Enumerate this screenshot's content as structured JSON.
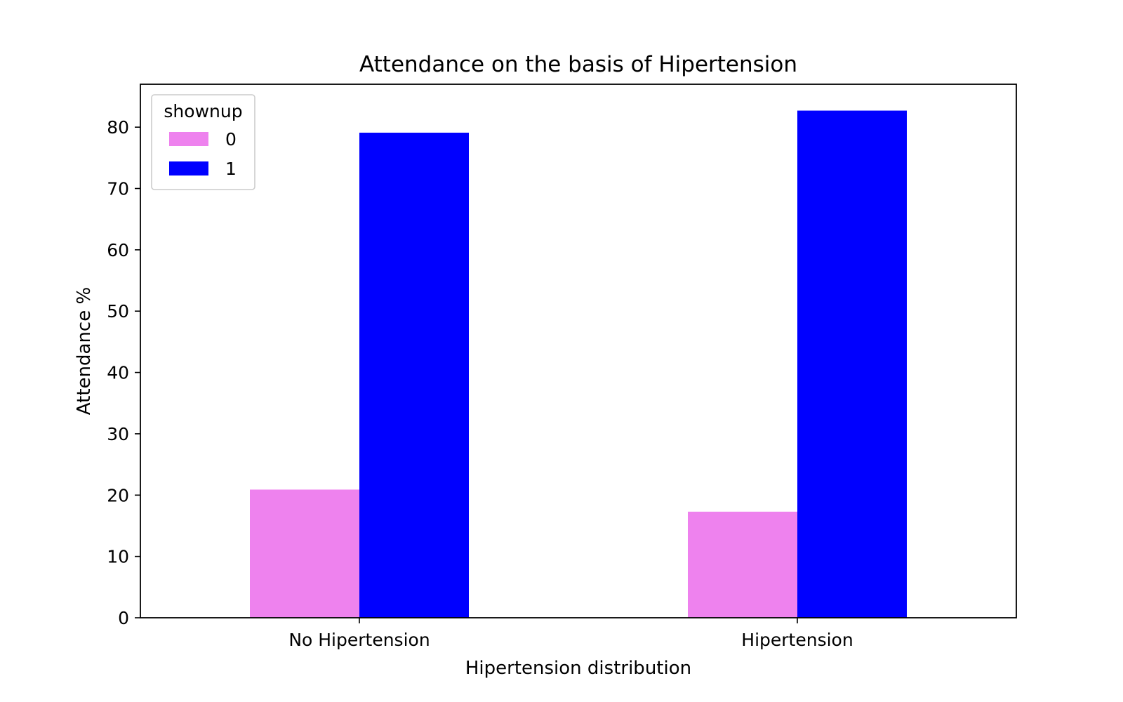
{
  "chart_data": {
    "type": "bar",
    "title": "Attendance on the basis of Hipertension",
    "xlabel": "Hipertension distribution",
    "ylabel": "Attendance %",
    "categories": [
      "No Hipertension",
      "Hipertension"
    ],
    "series": [
      {
        "name": "0",
        "color": "#ee82ee",
        "values": [
          20.9,
          17.3
        ]
      },
      {
        "name": "1",
        "color": "#0000ff",
        "values": [
          79.1,
          82.7
        ]
      }
    ],
    "ylim": [
      0,
      87
    ],
    "yticks": [
      0,
      10,
      20,
      30,
      40,
      50,
      60,
      70,
      80
    ],
    "legend": {
      "title": "shownup",
      "placement": "top-left"
    },
    "grid": false
  }
}
